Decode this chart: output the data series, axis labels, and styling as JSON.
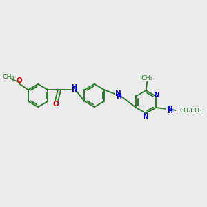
{
  "background_color": "#ebebeb",
  "bond_color": "#2d7a2d",
  "n_color": "#0000cc",
  "o_color": "#cc0000",
  "figsize": [
    3.0,
    3.0
  ],
  "dpi": 100,
  "xlim": [
    0,
    12
  ],
  "ylim": [
    0,
    10
  ],
  "bond_lw": 1.4,
  "font_size": 7.5,
  "small_font": 6.8
}
